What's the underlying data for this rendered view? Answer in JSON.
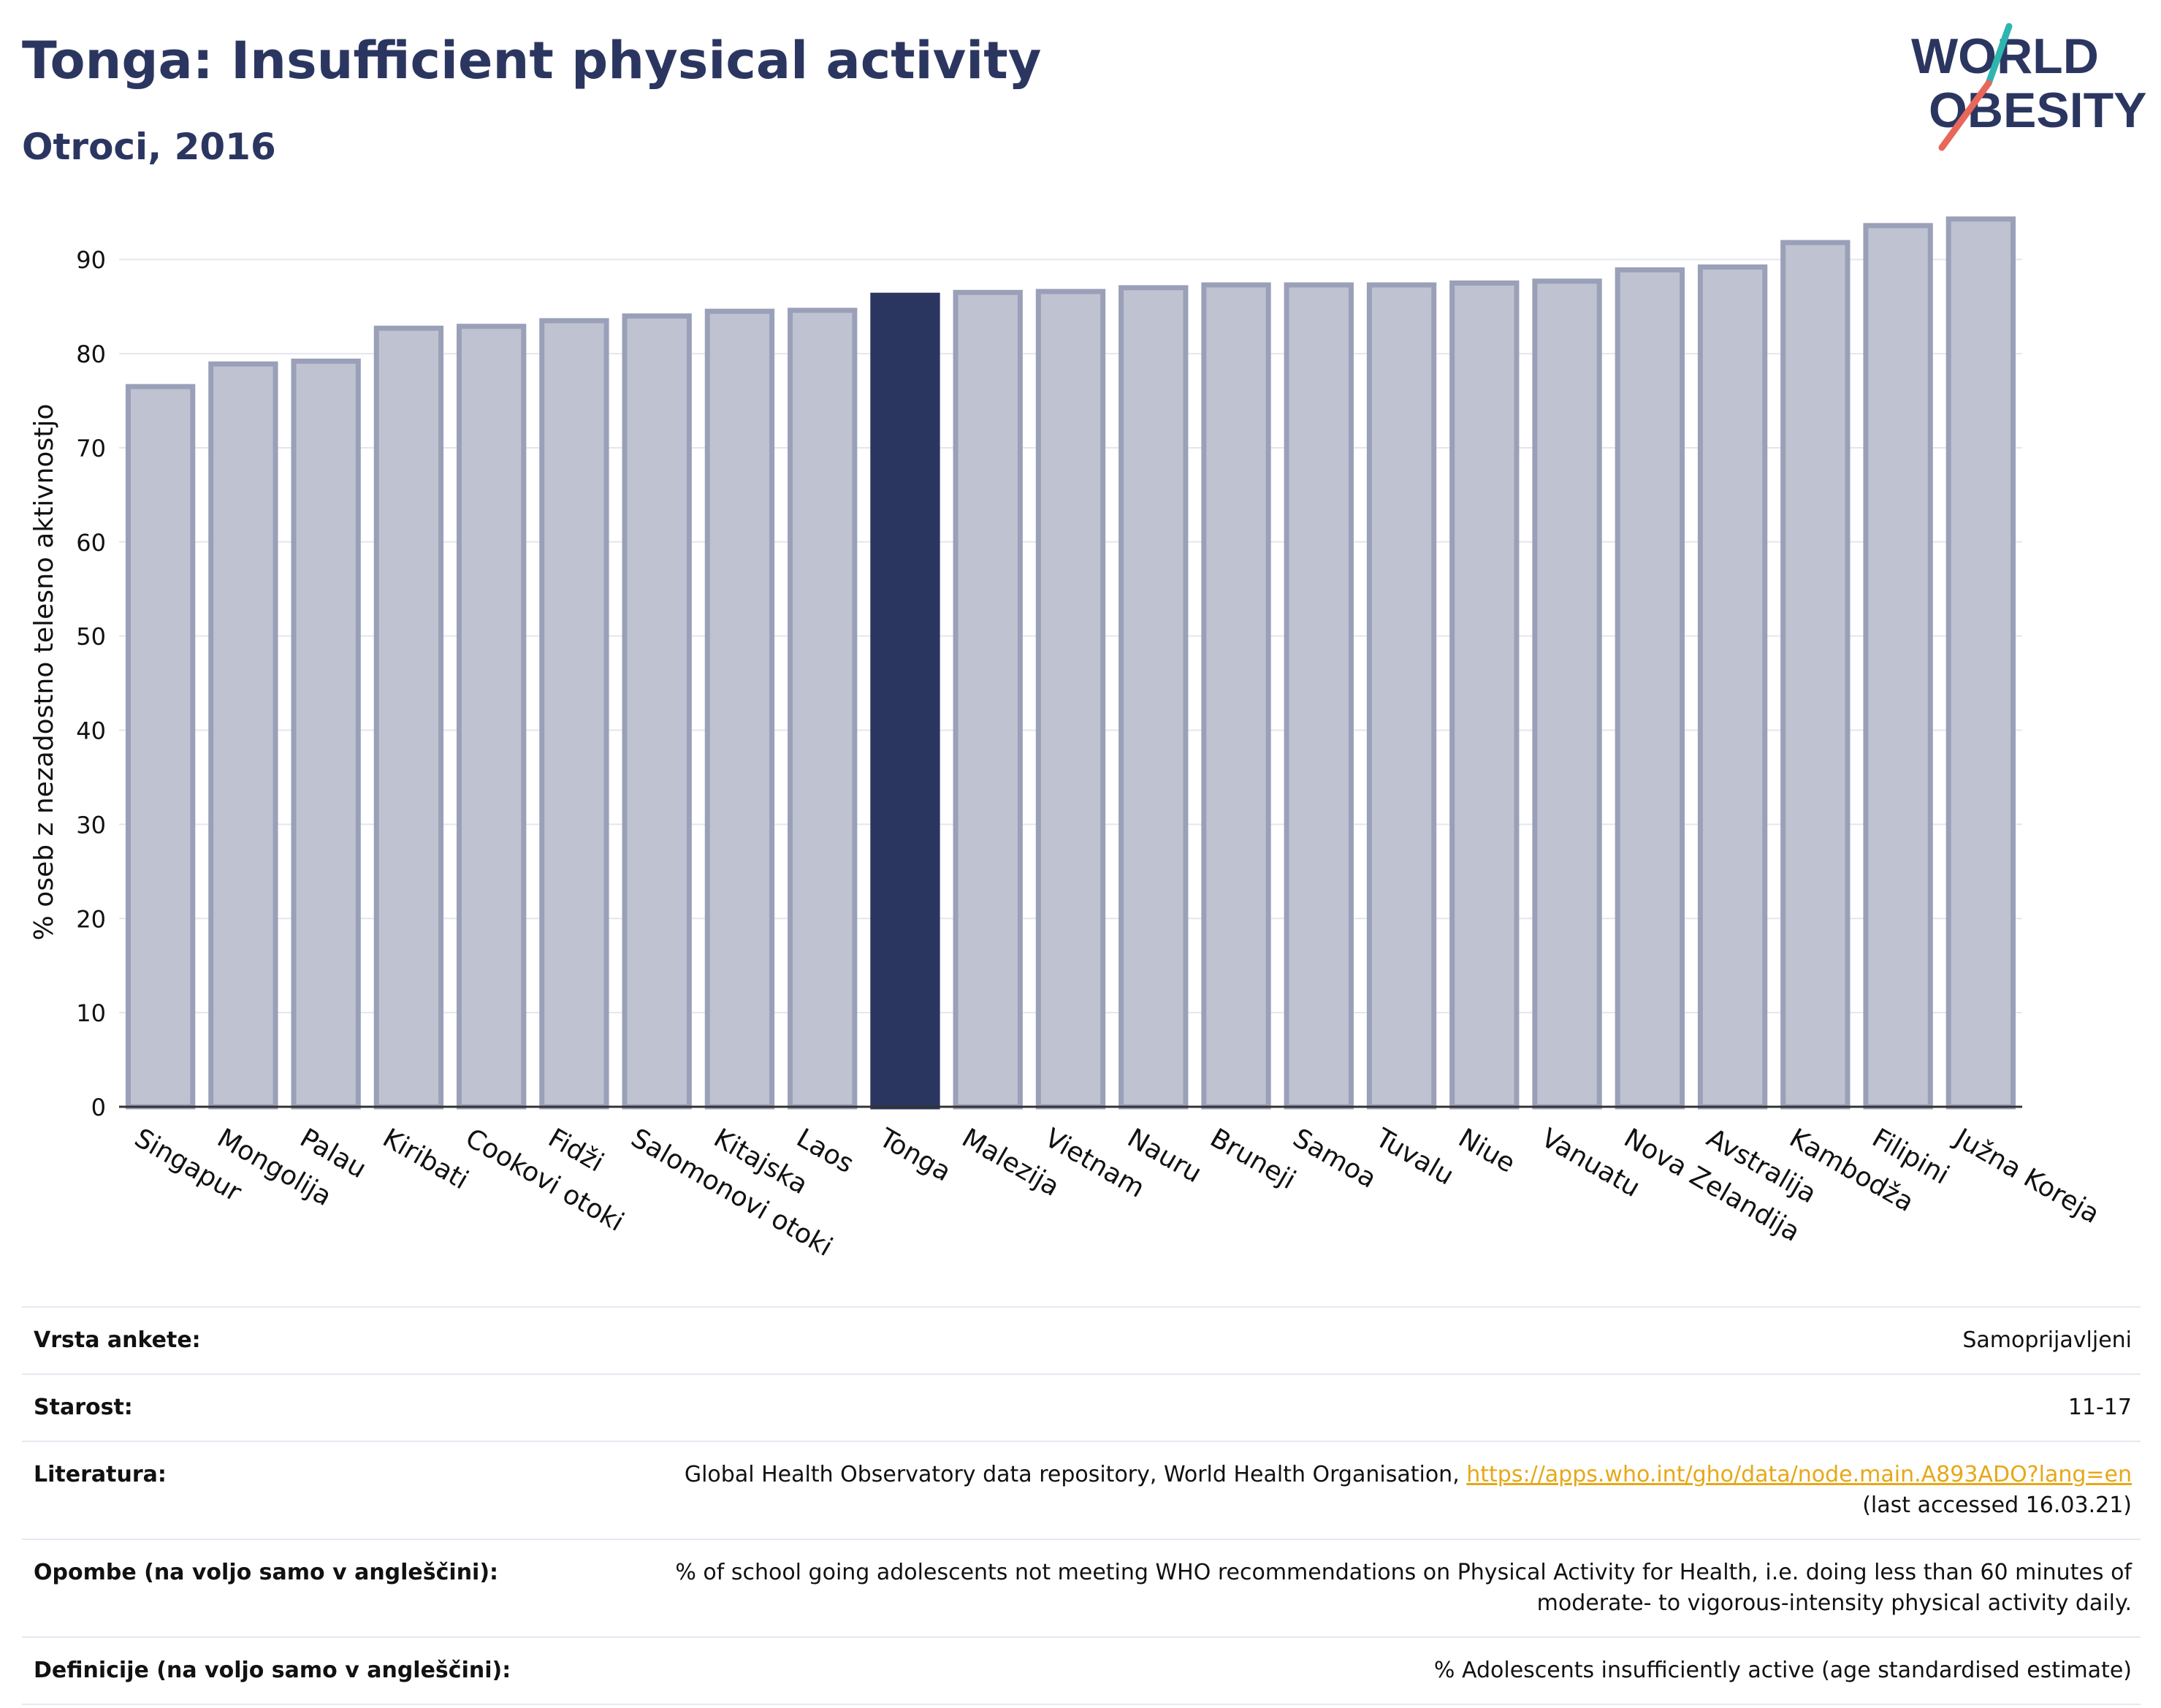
{
  "header": {
    "title": "Tonga: Insufficient physical activity",
    "subtitle": "Otroci, 2016"
  },
  "logo": {
    "line1": "WORLD",
    "line2": "OBESITY"
  },
  "colors": {
    "highlight": "#2b3660",
    "bar": "#bfc3d1",
    "bar_border": "#9aa0b8",
    "text": "#2b3660",
    "link": "#e6a817"
  },
  "chart_data": {
    "type": "bar",
    "ylabel": "% oseb z nezadostno telesno aktivnostjo",
    "xlabel": "",
    "ylim": [
      0,
      97
    ],
    "yticks": [
      0,
      10,
      20,
      30,
      40,
      50,
      60,
      70,
      80,
      90
    ],
    "grid": true,
    "highlight": "Tonga",
    "categories": [
      "Singapur",
      "Mongolija",
      "Palau",
      "Kiribati",
      "Cookovi otoki",
      "Fidži",
      "Salomonovi otoki",
      "Kitajska",
      "Laos",
      "Tonga",
      "Malezija",
      "Vietnam",
      "Nauru",
      "Bruneji",
      "Samoa",
      "Tuvalu",
      "Niue",
      "Vanuatu",
      "Nova Zelandija",
      "Avstralija",
      "Kambodža",
      "Filipini",
      "Južna Koreja"
    ],
    "values": [
      76.5,
      78.9,
      79.2,
      82.7,
      82.9,
      83.5,
      84.0,
      84.5,
      84.6,
      86.2,
      86.5,
      86.6,
      87.0,
      87.3,
      87.3,
      87.3,
      87.5,
      87.7,
      88.9,
      89.2,
      91.8,
      93.6,
      94.3
    ]
  },
  "info_table": {
    "survey": {
      "label": "Vrsta ankete:",
      "value": "Samoprijavljeni"
    },
    "age": {
      "label": "Starost:",
      "value": "11-17"
    },
    "reference": {
      "label": "Literatura:",
      "text": "Global Health Observatory data repository, World Health Organisation, ",
      "link": "https://apps.who.int/gho/data/node.main.A893ADO?lang=en",
      "accessed": "(last accessed 16.03.21)"
    },
    "notes": {
      "label": "Opombe (na voljo samo v angleščini):",
      "value": "% of school going adolescents not meeting WHO recommendations on Physical Activity for Health, i.e. doing less than 60 minutes of moderate- to vigorous-intensity physical activity daily."
    },
    "definitions": {
      "label": "Definicije (na voljo samo v angleščini):",
      "value": "% Adolescents insufficiently active (age standardised estimate)"
    }
  }
}
